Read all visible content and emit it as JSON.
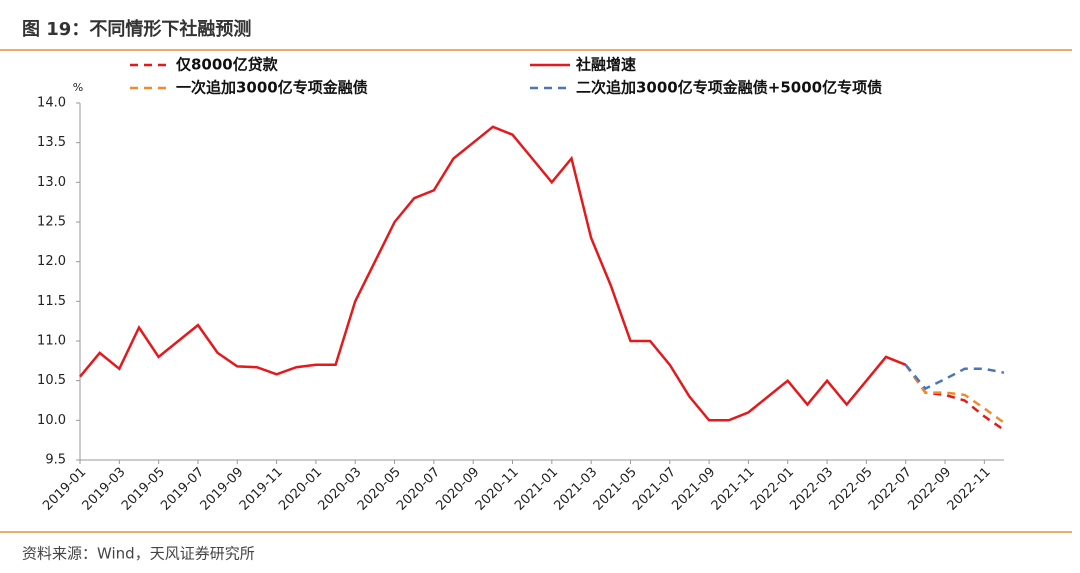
{
  "chart_data": {
    "type": "line",
    "title": "图 19：不同情形下社融预测",
    "source": "资料来源：Wind，天风证券研究所",
    "y_label": "%",
    "categories": [
      "2019-01",
      null,
      "2019-03",
      null,
      "2019-05",
      null,
      "2019-07",
      null,
      "2019-09",
      null,
      "2019-11",
      null,
      "2020-01",
      null,
      "2020-03",
      null,
      "2020-05",
      null,
      "2020-07",
      null,
      "2020-09",
      null,
      "2020-11",
      null,
      "2021-01",
      null,
      "2021-03",
      null,
      "2021-05",
      null,
      "2021-07",
      null,
      "2021-09",
      null,
      "2021-11",
      null,
      "2022-01",
      null,
      "2022-03",
      null,
      "2022-05",
      null,
      "2022-07",
      null,
      "2022-09",
      null,
      "2022-11",
      null
    ],
    "series": [
      {
        "name": "仅8000亿贷款",
        "color": "#e3191c",
        "style": "dashed",
        "values": [
          null,
          null,
          null,
          null,
          null,
          null,
          null,
          null,
          null,
          null,
          null,
          null,
          null,
          null,
          null,
          null,
          null,
          null,
          null,
          null,
          null,
          null,
          null,
          null,
          null,
          null,
          null,
          null,
          null,
          null,
          null,
          null,
          null,
          null,
          null,
          null,
          null,
          null,
          null,
          null,
          null,
          null,
          10.7,
          10.35,
          10.32,
          10.25,
          10.05,
          9.88
        ]
      },
      {
        "name": "社融增速",
        "color": "#e3191c",
        "style": "solid",
        "values": [
          10.55,
          10.85,
          10.65,
          11.17,
          10.8,
          11.0,
          11.2,
          10.85,
          10.68,
          10.67,
          10.58,
          10.67,
          10.7,
          10.7,
          11.5,
          12.0,
          12.5,
          12.8,
          12.9,
          13.3,
          13.5,
          13.7,
          13.6,
          13.3,
          13.0,
          13.3,
          12.3,
          11.7,
          11.0,
          11.0,
          10.7,
          10.3,
          10.0,
          10.0,
          10.1,
          10.3,
          10.5,
          10.2,
          10.5,
          10.2,
          10.5,
          10.8,
          10.7,
          null,
          null,
          null,
          null,
          null
        ]
      },
      {
        "name": "一次追加3000亿专项金融债",
        "color": "#f08a2c",
        "style": "dashed",
        "values": [
          null,
          null,
          null,
          null,
          null,
          null,
          null,
          null,
          null,
          null,
          null,
          null,
          null,
          null,
          null,
          null,
          null,
          null,
          null,
          null,
          null,
          null,
          null,
          null,
          null,
          null,
          null,
          null,
          null,
          null,
          null,
          null,
          null,
          null,
          null,
          null,
          null,
          null,
          null,
          null,
          null,
          null,
          10.7,
          10.35,
          10.35,
          10.32,
          10.15,
          9.97
        ]
      },
      {
        "name": "二次追加3000亿专项金融债+5000亿专项债",
        "color": "#4a76b8",
        "style": "dashed",
        "values": [
          null,
          null,
          null,
          null,
          null,
          null,
          null,
          null,
          null,
          null,
          null,
          null,
          null,
          null,
          null,
          null,
          null,
          null,
          null,
          null,
          null,
          null,
          null,
          null,
          null,
          null,
          null,
          null,
          null,
          null,
          null,
          null,
          null,
          null,
          null,
          null,
          null,
          null,
          null,
          null,
          null,
          null,
          10.7,
          10.4,
          10.52,
          10.65,
          10.65,
          10.6
        ]
      }
    ],
    "ylim": [
      9.5,
      14.0
    ],
    "yticks": [
      9.5,
      {
        "value": 10,
        "label": "10.0"
      },
      10.5,
      {
        "value": 11,
        "label": "11.0"
      },
      11.5,
      {
        "value": 12,
        "label": "12.0"
      },
      12.5,
      {
        "value": 13,
        "label": "13.0"
      },
      13.5,
      {
        "value": 14,
        "label": "14.0"
      }
    ],
    "grid": false
  }
}
